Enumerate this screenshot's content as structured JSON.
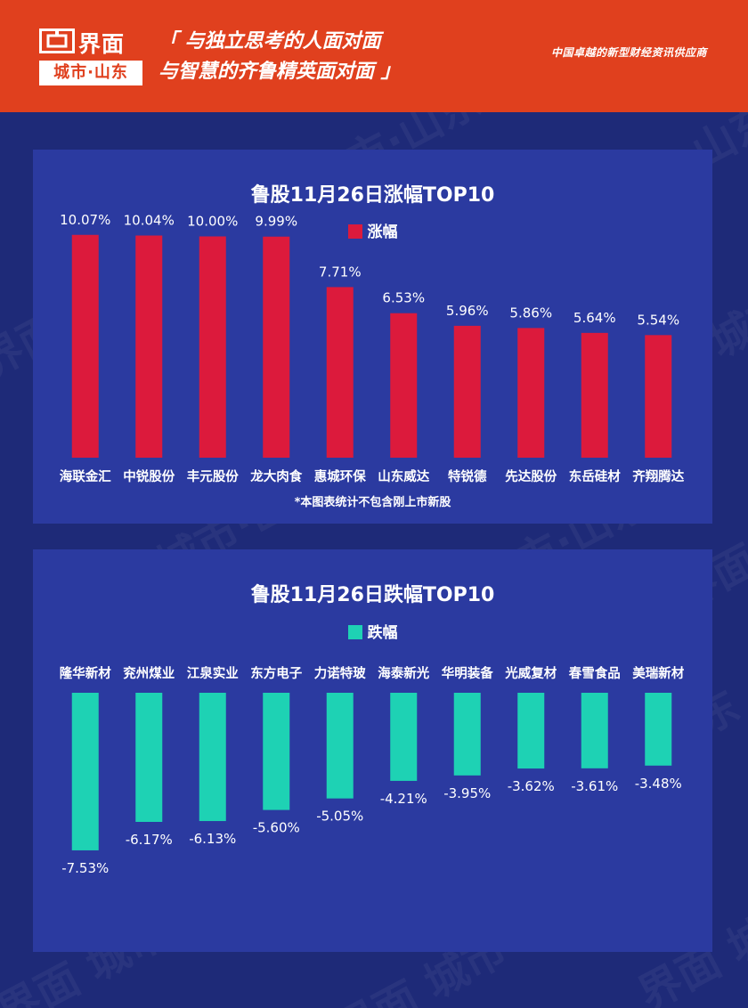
{
  "header": {
    "logo_name": "界面",
    "logo_sub": "城市·山东",
    "slogan_line1": "「 与独立思考的人面对面",
    "slogan_line2": "与智慧的齐鲁精英面对面 」",
    "tagline": "中国卓越的新型财经资讯供应商"
  },
  "watermark_text": "界面 城市·山东",
  "colors": {
    "background": "#1e2a78",
    "panel": "#2b3aa0",
    "header": "#e0401e",
    "up_bar": "#dc1a3c",
    "down_bar": "#1ed2b4",
    "text": "#ffffff"
  },
  "chart_data": [
    {
      "type": "bar",
      "title": "鲁股11月26日涨幅TOP10",
      "legend": "涨幅",
      "categories": [
        "海联金汇",
        "中锐股份",
        "丰元股份",
        "龙大肉食",
        "惠城环保",
        "山东威达",
        "特锐德",
        "先达股份",
        "东岳硅材",
        "齐翔腾达"
      ],
      "values": [
        10.07,
        10.04,
        10.0,
        9.99,
        7.71,
        6.53,
        5.96,
        5.86,
        5.64,
        5.54
      ],
      "labels": [
        "10.07%",
        "10.04%",
        "10.00%",
        "9.99%",
        "7.71%",
        "6.53%",
        "5.96%",
        "5.86%",
        "5.64%",
        "5.54%"
      ],
      "note": "*本图表统计不包含刚上市新股"
    },
    {
      "type": "bar",
      "title": "鲁股11月26日跌幅TOP10",
      "legend": "跌幅",
      "categories": [
        "隆华新材",
        "兖州煤业",
        "江泉实业",
        "东方电子",
        "力诺特玻",
        "海泰新光",
        "华明装备",
        "光威复材",
        "春雪食品",
        "美瑞新材"
      ],
      "values": [
        -7.53,
        -6.17,
        -6.13,
        -5.6,
        -5.05,
        -4.21,
        -3.95,
        -3.62,
        -3.61,
        -3.48
      ],
      "labels": [
        "-7.53%",
        "-6.17%",
        "-6.13%",
        "-5.60%",
        "-5.05%",
        "-4.21%",
        "-3.95%",
        "-3.62%",
        "-3.61%",
        "-3.48%"
      ]
    }
  ]
}
